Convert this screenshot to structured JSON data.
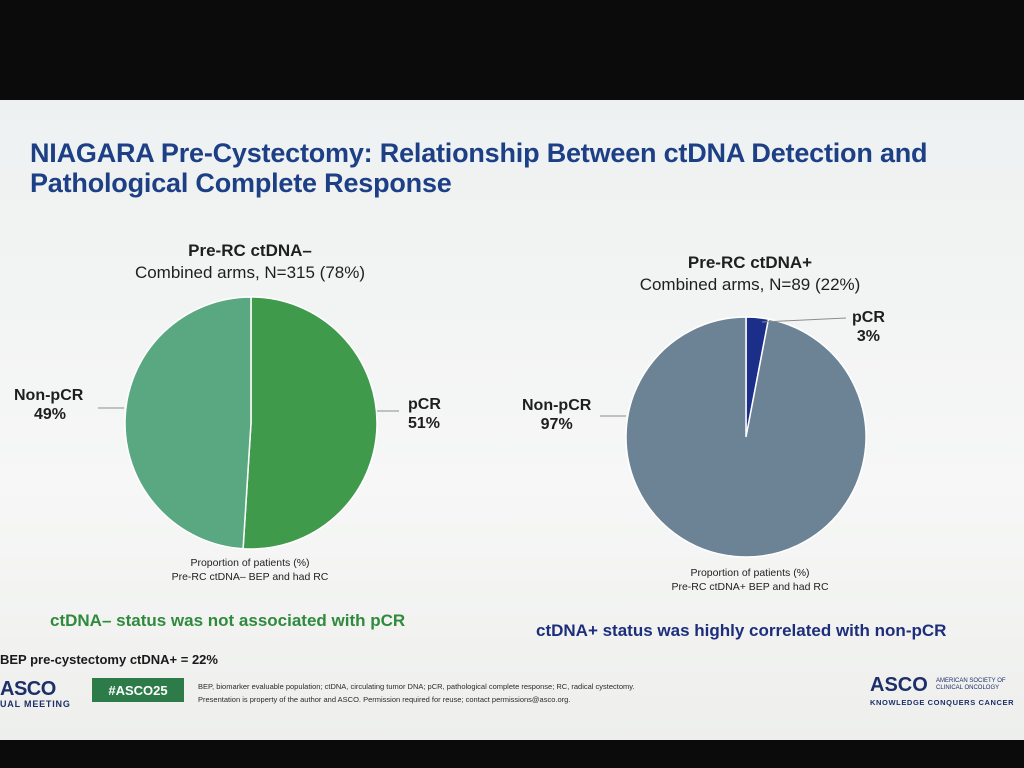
{
  "title": "NIAGARA Pre-Cystectomy: Relationship Between ctDNA Detection and Pathological Complete Response",
  "colors": {
    "title": "#1d3f86",
    "pcr_neg": "#3f9a4b",
    "nonpcr_neg": "#5aa882",
    "nonpcr_pos": "#6c8295",
    "pcr_pos": "#1b2f8a",
    "finding_left": "#2f8a3e",
    "finding_right": "#1d2f7a"
  },
  "chart_data": [
    {
      "type": "pie",
      "title": "Pre-RC ctDNA–",
      "subtitle": "Combined arms, N=315 (78%)",
      "slices": [
        {
          "name": "pCR",
          "value": 51,
          "label": "51%"
        },
        {
          "name": "Non-pCR",
          "value": 49,
          "label": "49%"
        }
      ],
      "caption_line1": "Proportion of patients (%)",
      "caption_line2": "Pre-RC ctDNA– BEP and had RC"
    },
    {
      "type": "pie",
      "title": "Pre-RC ctDNA+",
      "subtitle": "Combined arms, N=89 (22%)",
      "slices": [
        {
          "name": "pCR",
          "value": 3,
          "label": "3%"
        },
        {
          "name": "Non-pCR",
          "value": 97,
          "label": "97%"
        }
      ],
      "caption_line1": "Proportion of patients (%)",
      "caption_line2": "Pre-RC ctDNA+ BEP and had RC"
    }
  ],
  "findings": {
    "left": "ctDNA– status was not associated with pCR",
    "right": "ctDNA+ status was highly correlated with non-pCR"
  },
  "note": "BEP pre-cystectomy ctDNA+ = 22%",
  "footer": {
    "asco_left": "ASCO",
    "meeting": "UAL MEETING",
    "hashtag": "#ASCO25",
    "footnote_1": "BEP, biomarker evaluable population; ctDNA, circulating tumor DNA; pCR, pathological complete response; RC, radical cystectomy.",
    "footnote_2": "Presentation is property of the author and ASCO. Permission required for reuse; contact permissions@asco.org.",
    "asco_right": "ASCO",
    "society": "AMERICAN SOCIETY OF CLINICAL ONCOLOGY",
    "tagline": "KNOWLEDGE CONQUERS CANCER"
  }
}
